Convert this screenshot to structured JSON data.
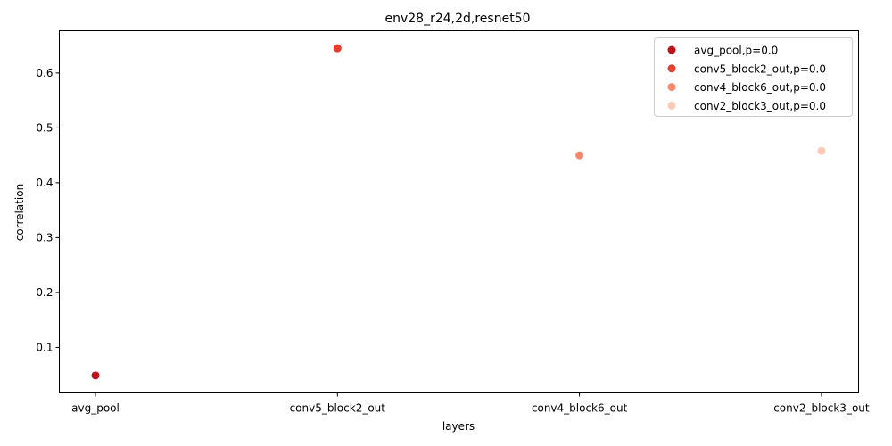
{
  "chart_data": {
    "type": "scatter",
    "title": "env28_r24,2d,resnet50",
    "xlabel": "layers",
    "ylabel": "correlation",
    "categories": [
      "avg_pool",
      "conv5_block2_out",
      "conv4_block6_out",
      "conv2_block3_out"
    ],
    "ylim": [
      0.017,
      0.677
    ],
    "yticks": [
      0.1,
      0.2,
      0.3,
      0.4,
      0.5,
      0.6
    ],
    "ytick_labels": [
      "0.1",
      "0.2",
      "0.3",
      "0.4",
      "0.5",
      "0.6"
    ],
    "grid": false,
    "legend_position": "top-right",
    "series": [
      {
        "name": "avg_pool,p=0.0",
        "x": "avg_pool",
        "y": 0.049,
        "color": "#bb151a"
      },
      {
        "name": "conv5_block2_out,p=0.0",
        "x": "conv5_block2_out",
        "y": 0.645,
        "color": "#e53f2f"
      },
      {
        "name": "conv4_block6_out,p=0.0",
        "x": "conv4_block6_out",
        "y": 0.45,
        "color": "#f9896b"
      },
      {
        "name": "conv2_block3_out,p=0.0",
        "x": "conv2_block3_out",
        "y": 0.458,
        "color": "#fdcab5"
      }
    ]
  }
}
